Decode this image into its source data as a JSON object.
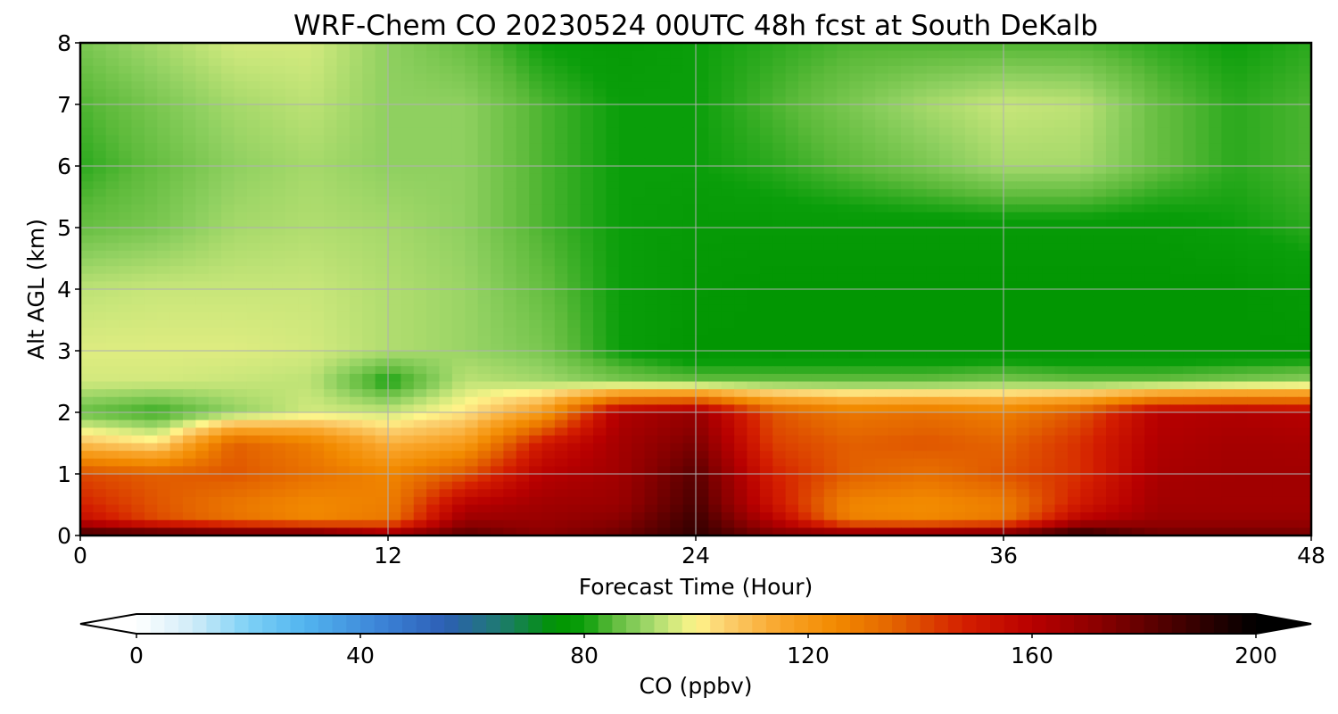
{
  "chart_data": {
    "type": "heatmap",
    "title": "WRF-Chem CO  20230524 00UTC 48h fcst at South DeKalb",
    "xlabel": "Forecast Time (Hour)",
    "ylabel": "Alt AGL (km)",
    "xlim": [
      0,
      48
    ],
    "ylim": [
      0,
      8
    ],
    "xticks": [
      0,
      12,
      24,
      36,
      48
    ],
    "yticks": [
      0,
      1,
      2,
      3,
      4,
      5,
      6,
      7,
      8
    ],
    "grid": true,
    "colorbar": {
      "label": "CO  (ppbv)",
      "range": [
        0,
        200
      ],
      "ticks": [
        0,
        40,
        80,
        120,
        160,
        200
      ],
      "extend": "both",
      "orientation": "horizontal",
      "stops": [
        {
          "v": 0,
          "c": "#ffffff"
        },
        {
          "v": 10,
          "c": "#d0ecf8"
        },
        {
          "v": 20,
          "c": "#7dd0f6"
        },
        {
          "v": 30,
          "c": "#52b4ef"
        },
        {
          "v": 45,
          "c": "#3a7fd4"
        },
        {
          "v": 55,
          "c": "#2d5fb5"
        },
        {
          "v": 65,
          "c": "#1e7a70"
        },
        {
          "v": 75,
          "c": "#009400"
        },
        {
          "v": 80,
          "c": "#0a9e0a"
        },
        {
          "v": 85,
          "c": "#5cba3a"
        },
        {
          "v": 90,
          "c": "#8fd060"
        },
        {
          "v": 95,
          "c": "#c8e67a"
        },
        {
          "v": 100,
          "c": "#fff58a"
        },
        {
          "v": 105,
          "c": "#fbd070"
        },
        {
          "v": 115,
          "c": "#f9a52a"
        },
        {
          "v": 125,
          "c": "#f28a00"
        },
        {
          "v": 135,
          "c": "#e46500"
        },
        {
          "v": 148,
          "c": "#d41e00"
        },
        {
          "v": 160,
          "c": "#b80000"
        },
        {
          "v": 172,
          "c": "#8a0000"
        },
        {
          "v": 185,
          "c": "#4a0000"
        },
        {
          "v": 200,
          "c": "#000000"
        }
      ]
    },
    "grid_hours": [
      0,
      3,
      6,
      9,
      12,
      15,
      18,
      21,
      24,
      27,
      30,
      33,
      36,
      39,
      42,
      45,
      48
    ],
    "grid_alts_km": [
      0,
      0.25,
      0.5,
      1,
      1.5,
      2,
      2.5,
      3,
      4,
      5,
      6,
      7,
      8
    ],
    "values_ppbv": [
      [
        190,
        188,
        185,
        185,
        170,
        182,
        172,
        178,
        190,
        175,
        176,
        178,
        180,
        194,
        178,
        178,
        176
      ],
      [
        155,
        140,
        132,
        126,
        130,
        168,
        168,
        172,
        188,
        160,
        128,
        126,
        130,
        160,
        168,
        168,
        168
      ],
      [
        148,
        138,
        130,
        125,
        128,
        160,
        166,
        168,
        185,
        152,
        126,
        124,
        128,
        150,
        166,
        166,
        166
      ],
      [
        140,
        136,
        138,
        132,
        126,
        138,
        160,
        166,
        182,
        148,
        136,
        132,
        138,
        145,
        164,
        166,
        166
      ],
      [
        108,
        102,
        136,
        128,
        112,
        118,
        150,
        165,
        175,
        142,
        136,
        138,
        135,
        145,
        162,
        165,
        164
      ],
      [
        86,
        82,
        90,
        96,
        95,
        102,
        118,
        162,
        168,
        138,
        130,
        132,
        128,
        138,
        160,
        162,
        160
      ],
      [
        96,
        96,
        95,
        94,
        80,
        94,
        92,
        88,
        86,
        86,
        86,
        86,
        88,
        86,
        86,
        88,
        90
      ],
      [
        97,
        97,
        97,
        96,
        93,
        91,
        88,
        80,
        76,
        76,
        76,
        76,
        76,
        76,
        76,
        76,
        76
      ],
      [
        94,
        95,
        95,
        95,
        93,
        91,
        86,
        80,
        77,
        76,
        76,
        76,
        76,
        76,
        76,
        76,
        78
      ],
      [
        86,
        88,
        92,
        93,
        92,
        90,
        84,
        80,
        78,
        78,
        78,
        78,
        78,
        78,
        78,
        80,
        82
      ],
      [
        82,
        86,
        90,
        92,
        90,
        90,
        84,
        80,
        80,
        82,
        85,
        88,
        92,
        92,
        86,
        82,
        84
      ],
      [
        84,
        88,
        92,
        94,
        90,
        90,
        84,
        80,
        80,
        84,
        88,
        92,
        95,
        94,
        86,
        82,
        84
      ],
      [
        88,
        92,
        96,
        96,
        90,
        86,
        80,
        78,
        80,
        82,
        84,
        84,
        84,
        84,
        82,
        80,
        82
      ]
    ]
  }
}
